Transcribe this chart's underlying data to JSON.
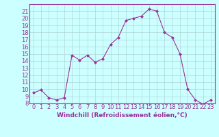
{
  "hours": [
    0,
    1,
    2,
    3,
    4,
    5,
    6,
    7,
    8,
    9,
    10,
    11,
    12,
    13,
    14,
    15,
    16,
    17,
    18,
    19,
    20,
    21,
    22,
    23
  ],
  "values": [
    9.5,
    9.9,
    8.8,
    8.5,
    8.8,
    14.8,
    14.1,
    14.8,
    13.8,
    14.3,
    16.3,
    17.3,
    19.7,
    20.0,
    20.3,
    21.3,
    21.0,
    18.0,
    17.3,
    15.0,
    10.0,
    8.5,
    7.9,
    8.5
  ],
  "line_color": "#993399",
  "marker": "D",
  "marker_size": 2.0,
  "background_color": "#ccffff",
  "grid_color": "#aacccc",
  "xlabel": "Windchill (Refroidissement éolien,°C)",
  "ylim": [
    8,
    22
  ],
  "xlim": [
    -0.5,
    23.5
  ],
  "yticks": [
    8,
    9,
    10,
    11,
    12,
    13,
    14,
    15,
    16,
    17,
    18,
    19,
    20,
    21
  ],
  "xticks": [
    0,
    1,
    2,
    3,
    4,
    5,
    6,
    7,
    8,
    9,
    10,
    11,
    12,
    13,
    14,
    15,
    16,
    17,
    18,
    19,
    20,
    21,
    22,
    23
  ],
  "tick_color": "#993399",
  "label_color": "#993399",
  "font_size": 6.0,
  "xlabel_fontsize": 6.5,
  "linewidth": 0.8
}
